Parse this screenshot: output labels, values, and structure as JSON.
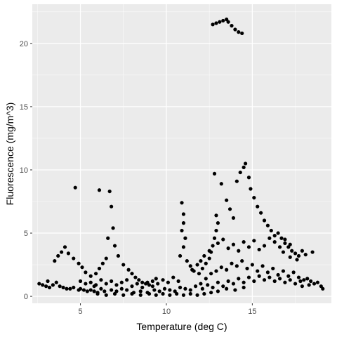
{
  "chart_data": {
    "type": "scatter",
    "title": "",
    "xlabel": "Temperature (deg C)",
    "ylabel": "Fluorescence (mg/m^3)",
    "xlim": [
      2.2,
      19.6
    ],
    "ylim": [
      -0.55,
      23.1
    ],
    "x_ticks": [
      5,
      10,
      15
    ],
    "x_tick_labels": [
      "5",
      "10",
      "15"
    ],
    "y_ticks": [
      0,
      5,
      10,
      15,
      20
    ],
    "y_tick_labels": [
      "0",
      "5",
      "10",
      "15",
      "20"
    ],
    "grid": true,
    "legend": "none",
    "colors": {
      "panel": "#EBEBEB",
      "grid_major": "#FFFFFF",
      "point": "#000000",
      "tick_label": "#4D4D4D",
      "axis_title": "#000000"
    },
    "points": [
      [
        2.6,
        1.0
      ],
      [
        2.8,
        0.9
      ],
      [
        3.0,
        0.8
      ],
      [
        3.1,
        1.2
      ],
      [
        3.2,
        0.7
      ],
      [
        3.4,
        0.9
      ],
      [
        3.6,
        1.1
      ],
      [
        3.8,
        0.8
      ],
      [
        4.0,
        0.7
      ],
      [
        4.2,
        0.6
      ],
      [
        4.4,
        0.6
      ],
      [
        4.6,
        0.7
      ],
      [
        4.7,
        8.6
      ],
      [
        4.9,
        0.5
      ],
      [
        5.0,
        0.6
      ],
      [
        5.2,
        0.5
      ],
      [
        5.4,
        0.4
      ],
      [
        5.6,
        0.5
      ],
      [
        5.8,
        0.4
      ],
      [
        6.0,
        0.3
      ],
      [
        3.5,
        2.8
      ],
      [
        3.7,
        3.2
      ],
      [
        3.9,
        3.5
      ],
      [
        4.1,
        3.9
      ],
      [
        4.3,
        3.4
      ],
      [
        4.6,
        3.0
      ],
      [
        4.9,
        2.6
      ],
      [
        5.1,
        2.3
      ],
      [
        5.3,
        1.9
      ],
      [
        5.6,
        1.6
      ],
      [
        5.9,
        1.8
      ],
      [
        6.1,
        2.2
      ],
      [
        6.3,
        2.6
      ],
      [
        6.5,
        3.0
      ],
      [
        6.6,
        4.6
      ],
      [
        6.7,
        8.3
      ],
      [
        6.8,
        7.1
      ],
      [
        6.9,
        5.4
      ],
      [
        7.0,
        4.0
      ],
      [
        7.2,
        3.2
      ],
      [
        7.5,
        2.5
      ],
      [
        7.8,
        2.1
      ],
      [
        8.0,
        1.8
      ],
      [
        8.2,
        1.5
      ],
      [
        8.4,
        1.3
      ],
      [
        8.6,
        1.1
      ],
      [
        8.8,
        1.0
      ],
      [
        9.0,
        0.9
      ],
      [
        9.2,
        1.2
      ],
      [
        9.4,
        1.4
      ],
      [
        6.1,
        8.4
      ],
      [
        5.8,
        0.8
      ],
      [
        6.2,
        0.6
      ],
      [
        6.4,
        0.4
      ],
      [
        6.8,
        0.5
      ],
      [
        7.1,
        0.4
      ],
      [
        7.4,
        0.6
      ],
      [
        7.7,
        0.5
      ],
      [
        8.1,
        0.3
      ],
      [
        8.5,
        0.4
      ],
      [
        8.9,
        0.3
      ],
      [
        9.3,
        0.5
      ],
      [
        9.6,
        0.4
      ],
      [
        9.9,
        0.6
      ],
      [
        10.2,
        0.5
      ],
      [
        10.5,
        0.4
      ],
      [
        10.8,
        0.7
      ],
      [
        11.1,
        0.6
      ],
      [
        11.4,
        0.5
      ],
      [
        11.7,
        0.8
      ],
      [
        5.0,
        1.2
      ],
      [
        5.3,
        1.0
      ],
      [
        5.6,
        1.1
      ],
      [
        5.9,
        0.9
      ],
      [
        6.2,
        1.3
      ],
      [
        6.5,
        1.0
      ],
      [
        6.8,
        1.2
      ],
      [
        7.1,
        0.9
      ],
      [
        7.4,
        1.1
      ],
      [
        7.7,
        1.3
      ],
      [
        8.0,
        0.8
      ],
      [
        8.3,
        1.0
      ],
      [
        8.6,
        0.7
      ],
      [
        8.9,
        1.1
      ],
      [
        9.2,
        0.8
      ],
      [
        9.5,
        1.0
      ],
      [
        9.8,
        1.3
      ],
      [
        10.1,
        1.1
      ],
      [
        10.4,
        1.5
      ],
      [
        10.7,
        1.2
      ],
      [
        10.9,
        7.4
      ],
      [
        11.0,
        6.5
      ],
      [
        11.0,
        5.8
      ],
      [
        10.9,
        5.2
      ],
      [
        11.1,
        4.6
      ],
      [
        11.0,
        3.9
      ],
      [
        10.8,
        3.2
      ],
      [
        11.2,
        2.8
      ],
      [
        11.4,
        2.4
      ],
      [
        11.6,
        2.0
      ],
      [
        11.9,
        1.8
      ],
      [
        12.1,
        2.2
      ],
      [
        12.3,
        2.6
      ],
      [
        12.5,
        3.0
      ],
      [
        12.6,
        3.5
      ],
      [
        12.7,
        4.0
      ],
      [
        12.8,
        4.6
      ],
      [
        12.9,
        5.2
      ],
      [
        13.0,
        5.8
      ],
      [
        12.9,
        6.4
      ],
      [
        12.8,
        9.7
      ],
      [
        13.2,
        8.9
      ],
      [
        13.5,
        7.6
      ],
      [
        13.7,
        6.9
      ],
      [
        13.9,
        6.2
      ],
      [
        14.1,
        9.1
      ],
      [
        14.3,
        9.8
      ],
      [
        14.5,
        10.2
      ],
      [
        14.6,
        10.5
      ],
      [
        14.8,
        9.4
      ],
      [
        14.9,
        8.5
      ],
      [
        15.1,
        7.8
      ],
      [
        15.3,
        7.1
      ],
      [
        15.5,
        6.6
      ],
      [
        15.7,
        6.0
      ],
      [
        15.9,
        5.6
      ],
      [
        16.1,
        5.2
      ],
      [
        16.3,
        4.8
      ],
      [
        16.5,
        5.0
      ],
      [
        16.7,
        4.6
      ],
      [
        16.9,
        4.2
      ],
      [
        17.1,
        3.9
      ],
      [
        17.3,
        3.6
      ],
      [
        17.5,
        3.4
      ],
      [
        17.7,
        3.2
      ],
      [
        17.9,
        3.6
      ],
      [
        18.1,
        3.3
      ],
      [
        17.6,
        2.9
      ],
      [
        17.2,
        3.1
      ],
      [
        16.8,
        3.5
      ],
      [
        12.0,
        1.0
      ],
      [
        12.3,
        1.4
      ],
      [
        12.6,
        1.8
      ],
      [
        12.9,
        2.0
      ],
      [
        13.2,
        2.3
      ],
      [
        13.5,
        2.1
      ],
      [
        13.8,
        2.6
      ],
      [
        14.1,
        2.4
      ],
      [
        14.4,
        2.8
      ],
      [
        14.7,
        2.2
      ],
      [
        15.0,
        2.5
      ],
      [
        15.3,
        2.0
      ],
      [
        15.6,
        2.4
      ],
      [
        15.9,
        1.9
      ],
      [
        16.2,
        2.2
      ],
      [
        16.5,
        1.7
      ],
      [
        16.8,
        2.0
      ],
      [
        17.1,
        1.6
      ],
      [
        17.4,
        1.9
      ],
      [
        17.7,
        1.5
      ],
      [
        12.1,
        0.6
      ],
      [
        12.4,
        0.9
      ],
      [
        12.7,
        0.7
      ],
      [
        13.0,
        1.1
      ],
      [
        13.3,
        0.8
      ],
      [
        13.6,
        1.2
      ],
      [
        13.9,
        1.0
      ],
      [
        14.2,
        1.4
      ],
      [
        14.5,
        1.1
      ],
      [
        14.8,
        1.5
      ],
      [
        15.1,
        1.2
      ],
      [
        15.4,
        1.6
      ],
      [
        15.7,
        1.3
      ],
      [
        16.0,
        1.5
      ],
      [
        16.3,
        1.2
      ],
      [
        16.6,
        1.4
      ],
      [
        16.9,
        1.1
      ],
      [
        17.2,
        1.3
      ],
      [
        17.5,
        1.0
      ],
      [
        17.8,
        1.2
      ],
      [
        13.0,
        4.2
      ],
      [
        13.3,
        4.5
      ],
      [
        13.6,
        3.8
      ],
      [
        13.9,
        4.1
      ],
      [
        14.2,
        3.6
      ],
      [
        14.5,
        4.3
      ],
      [
        14.8,
        3.9
      ],
      [
        15.1,
        4.4
      ],
      [
        15.4,
        3.7
      ],
      [
        15.7,
        4.0
      ],
      [
        16.0,
        4.6
      ],
      [
        16.3,
        4.3
      ],
      [
        16.6,
        3.9
      ],
      [
        16.9,
        4.5
      ],
      [
        17.2,
        4.1
      ],
      [
        12.5,
        3.6
      ],
      [
        12.2,
        3.2
      ],
      [
        12.0,
        2.8
      ],
      [
        11.8,
        2.5
      ],
      [
        11.5,
        2.1
      ],
      [
        12.7,
        21.5
      ],
      [
        12.9,
        21.6
      ],
      [
        13.1,
        21.7
      ],
      [
        13.3,
        21.8
      ],
      [
        13.5,
        21.9
      ],
      [
        13.6,
        21.7
      ],
      [
        13.8,
        21.4
      ],
      [
        14.0,
        21.1
      ],
      [
        14.2,
        20.9
      ],
      [
        14.4,
        20.8
      ],
      [
        18.5,
        3.5
      ],
      [
        18.8,
        1.1
      ],
      [
        19.0,
        0.8
      ],
      [
        19.1,
        0.6
      ],
      [
        18.6,
        1.0
      ],
      [
        18.3,
        0.9
      ],
      [
        18.0,
        1.3
      ],
      [
        17.9,
        0.8
      ],
      [
        18.2,
        1.4
      ],
      [
        18.4,
        1.2
      ],
      [
        9.0,
        0.2
      ],
      [
        9.4,
        0.1
      ],
      [
        9.8,
        0.2
      ],
      [
        10.2,
        0.1
      ],
      [
        10.6,
        0.2
      ],
      [
        11.0,
        0.1
      ],
      [
        11.4,
        0.2
      ],
      [
        11.8,
        0.1
      ],
      [
        12.2,
        0.2
      ],
      [
        12.6,
        0.3
      ],
      [
        6.0,
        0.2
      ],
      [
        6.5,
        0.1
      ],
      [
        7.0,
        0.2
      ],
      [
        7.5,
        0.1
      ],
      [
        8.0,
        0.2
      ],
      [
        8.5,
        0.1
      ],
      [
        13.0,
        0.4
      ],
      [
        13.5,
        0.6
      ],
      [
        14.0,
        0.5
      ],
      [
        14.5,
        0.7
      ]
    ]
  }
}
